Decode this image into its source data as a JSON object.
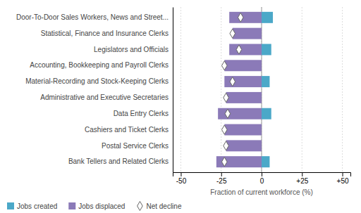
{
  "chart_data": {
    "type": "bar",
    "orientation": "horizontal",
    "categories": [
      "Door-To-Door Sales Workers, News and Street...",
      "Statistical, Finance and Insurance Clerks",
      "Legislators and Officials",
      "Accounting, Bookkeeping and Payroll Clerks",
      "Material-Recording and Stock-Keeping Clerks",
      "Administrative and Executive Secretaries",
      "Data Entry Clerks",
      "Cashiers and Ticket Clerks",
      "Postal Service Clerks",
      "Bank Tellers and Related Clerks"
    ],
    "series": [
      {
        "name": "Jobs created",
        "color": "#4ba8c8",
        "values": [
          7,
          0,
          6,
          0,
          5,
          0,
          6,
          0,
          0,
          5
        ]
      },
      {
        "name": "Jobs displaced",
        "color": "#8b7ab8",
        "values": [
          -20,
          -18,
          -20,
          -23,
          -23,
          -22,
          -27,
          -23,
          -22,
          -28
        ]
      },
      {
        "name": "Net decline",
        "type": "scatter",
        "marker": "diamond",
        "color": "#ffffff",
        "values": [
          -13,
          -18,
          -14,
          -23,
          -18,
          -22,
          -21,
          -23,
          -22,
          -23
        ]
      }
    ],
    "xlabel": "Fraction of current workforce (%)",
    "xlim": [
      -55,
      55
    ],
    "xticks": [
      -50,
      -25,
      0,
      {
        "value": 25,
        "label": "+25"
      },
      {
        "value": 50,
        "label": "+50"
      }
    ],
    "grid": true,
    "legend": "bottom"
  }
}
